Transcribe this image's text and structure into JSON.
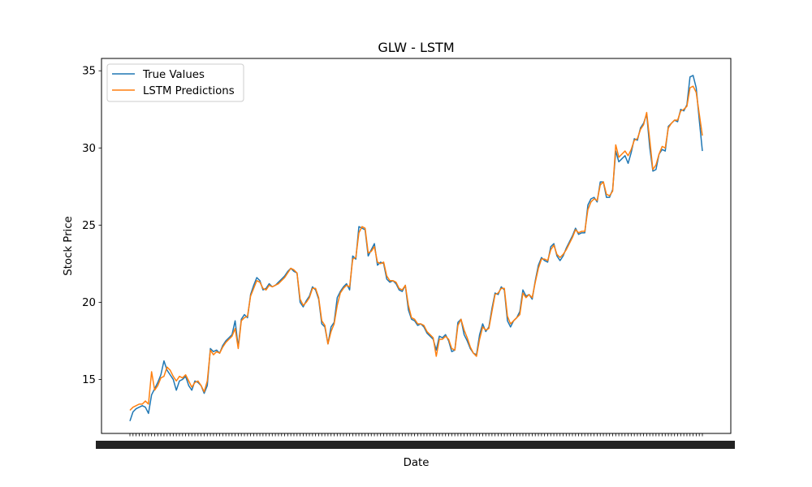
{
  "chart_data": {
    "type": "line",
    "title": "GLW - LSTM",
    "xlabel": "Date",
    "ylabel": "Stock Price",
    "ylim": [
      11.5,
      35.8
    ],
    "yticks": [
      15,
      20,
      25,
      30,
      35
    ],
    "grid": false,
    "legend_position": "upper-left",
    "series": [
      {
        "name": "True Values",
        "color": "#1f77b4",
        "values": [
          12.3,
          12.9,
          13.1,
          13.2,
          13.3,
          13.2,
          12.8,
          14.0,
          14.4,
          14.8,
          15.3,
          16.2,
          15.6,
          15.3,
          15.0,
          14.3,
          14.9,
          15.0,
          15.2,
          14.6,
          14.3,
          14.9,
          14.8,
          14.6,
          14.1,
          14.6,
          17.0,
          16.8,
          16.9,
          16.7,
          17.2,
          17.5,
          17.7,
          17.9,
          18.8,
          17.1,
          18.9,
          19.2,
          19.0,
          20.5,
          21.1,
          21.6,
          21.4,
          20.8,
          20.9,
          21.2,
          21.0,
          21.1,
          21.3,
          21.5,
          21.7,
          22.0,
          22.2,
          22.0,
          21.9,
          20.0,
          19.7,
          20.1,
          20.4,
          21.0,
          20.8,
          20.2,
          18.6,
          18.4,
          17.3,
          18.4,
          18.7,
          20.3,
          20.7,
          21.0,
          21.2,
          20.8,
          23.0,
          22.8,
          24.9,
          24.8,
          24.7,
          23.0,
          23.4,
          23.8,
          22.4,
          22.6,
          22.5,
          21.5,
          21.3,
          21.4,
          21.2,
          20.8,
          20.7,
          21.1,
          19.5,
          18.9,
          18.8,
          18.5,
          18.6,
          18.4,
          18.0,
          17.8,
          17.6,
          16.9,
          17.8,
          17.7,
          17.9,
          17.5,
          16.8,
          16.9,
          18.7,
          18.9,
          17.9,
          17.5,
          17.0,
          16.7,
          16.6,
          17.9,
          18.6,
          18.1,
          18.4,
          19.6,
          20.6,
          20.5,
          21.0,
          20.8,
          18.8,
          18.4,
          18.8,
          19.0,
          19.4,
          20.8,
          20.4,
          20.5,
          20.2,
          21.4,
          22.4,
          22.9,
          22.7,
          22.6,
          23.6,
          23.8,
          23.0,
          22.7,
          23.0,
          23.5,
          23.9,
          24.3,
          24.8,
          24.4,
          24.5,
          24.5,
          26.3,
          26.7,
          26.8,
          26.5,
          27.8,
          27.8,
          26.8,
          26.8,
          27.3,
          29.8,
          29.1,
          29.3,
          29.5,
          29.0,
          29.7,
          30.6,
          30.5,
          31.3,
          31.6,
          32.2,
          30.0,
          28.5,
          28.6,
          29.6,
          29.9,
          29.8,
          31.4,
          31.6,
          31.8,
          31.7,
          32.5,
          32.4,
          32.8,
          34.6,
          34.7,
          33.9,
          31.8,
          29.8
        ]
      },
      {
        "name": "LSTM Predictions",
        "color": "#ff7f0e",
        "values": [
          13.0,
          13.2,
          13.3,
          13.4,
          13.4,
          13.6,
          13.4,
          15.5,
          14.3,
          14.6,
          15.1,
          15.2,
          15.8,
          15.6,
          15.2,
          14.9,
          15.2,
          15.1,
          15.3,
          14.9,
          14.5,
          14.8,
          14.9,
          14.6,
          14.2,
          14.9,
          16.9,
          16.6,
          16.8,
          16.7,
          17.1,
          17.4,
          17.6,
          17.8,
          18.3,
          17.0,
          18.8,
          19.0,
          19.1,
          20.4,
          20.9,
          21.4,
          21.3,
          20.9,
          20.8,
          21.1,
          21.0,
          21.1,
          21.2,
          21.4,
          21.6,
          21.9,
          22.2,
          22.1,
          21.9,
          20.2,
          19.8,
          20.0,
          20.3,
          20.9,
          20.9,
          20.3,
          18.8,
          18.5,
          17.3,
          18.1,
          18.6,
          19.8,
          20.6,
          20.9,
          21.1,
          21.0,
          22.8,
          22.9,
          24.5,
          24.9,
          24.8,
          23.2,
          23.3,
          23.6,
          22.6,
          22.5,
          22.6,
          21.7,
          21.4,
          21.4,
          21.3,
          20.9,
          20.8,
          21.1,
          19.8,
          19.0,
          18.9,
          18.6,
          18.6,
          18.5,
          18.1,
          17.9,
          17.7,
          16.5,
          17.6,
          17.6,
          17.8,
          17.6,
          17.0,
          16.9,
          18.5,
          18.9,
          18.2,
          17.7,
          17.1,
          16.7,
          16.5,
          17.6,
          18.4,
          18.2,
          18.3,
          19.4,
          20.5,
          20.6,
          20.9,
          20.9,
          19.1,
          18.6,
          18.8,
          19.0,
          19.2,
          20.6,
          20.3,
          20.5,
          20.3,
          21.3,
          22.2,
          22.8,
          22.8,
          22.7,
          23.4,
          23.7,
          23.1,
          22.9,
          23.1,
          23.4,
          23.8,
          24.2,
          24.7,
          24.5,
          24.6,
          24.6,
          26.0,
          26.5,
          26.7,
          26.6,
          27.6,
          27.8,
          27.0,
          26.9,
          27.2,
          30.2,
          29.4,
          29.6,
          29.8,
          29.5,
          29.9,
          30.5,
          30.6,
          31.2,
          31.5,
          32.3,
          30.5,
          28.6,
          28.9,
          29.6,
          30.1,
          30.0,
          31.3,
          31.6,
          31.8,
          31.8,
          32.4,
          32.5,
          32.7,
          33.9,
          34.0,
          33.6,
          32.2,
          30.8
        ]
      }
    ]
  }
}
